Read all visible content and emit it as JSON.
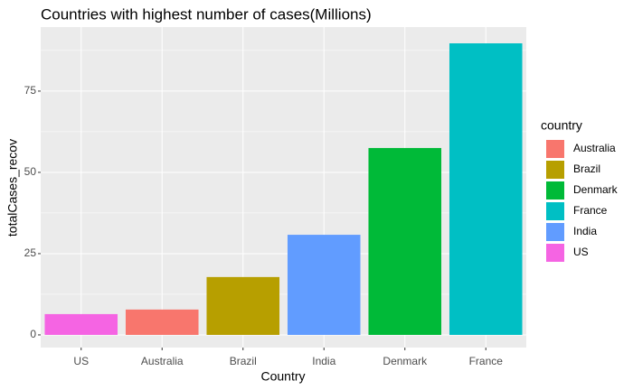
{
  "chart_data": {
    "type": "bar",
    "title": "Countries with highest number of cases(Millions)",
    "x_label": "Country",
    "y_label": "totalCases_recov",
    "categories": [
      "US",
      "Australia",
      "Brazil",
      "India",
      "Denmark",
      "France"
    ],
    "values": [
      6.4,
      7.8,
      17.8,
      30.8,
      57.5,
      89.7
    ],
    "colors": [
      "#F564E3",
      "#F8766D",
      "#B79F00",
      "#619CFF",
      "#00BA38",
      "#00BFC4"
    ],
    "ylim": [
      -3.9,
      94.7
    ],
    "yticks": [
      0,
      25,
      50,
      75
    ],
    "yminorticks": [
      12.5,
      37.5,
      62.5,
      87.5
    ],
    "grid": true,
    "legend": {
      "title": "country",
      "position": "right",
      "entries": [
        {
          "name": "Australia",
          "color": "#F8766D"
        },
        {
          "name": "Brazil",
          "color": "#B79F00"
        },
        {
          "name": "Denmark",
          "color": "#00BA38"
        },
        {
          "name": "France",
          "color": "#00BFC4"
        },
        {
          "name": "India",
          "color": "#619CFF"
        },
        {
          "name": "US",
          "color": "#F564E3"
        }
      ]
    }
  }
}
